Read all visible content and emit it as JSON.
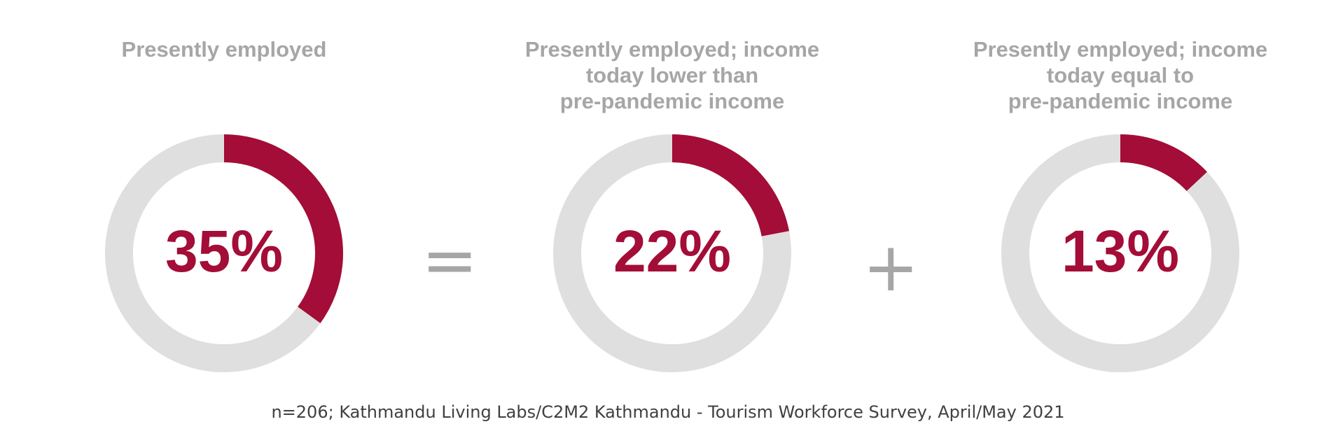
{
  "colors": {
    "accent": "#a30d37",
    "track": "#dfdfdf",
    "title": "#a6a6a6",
    "operator": "#a6a6a6",
    "footnote": "#404040"
  },
  "chart_data": [
    {
      "type": "pie",
      "title": "Presently employed",
      "values": [
        35
      ],
      "label": "35%"
    },
    {
      "type": "pie",
      "title": "Presently employed; income\ntoday lower than\npre-pandemic income",
      "values": [
        22
      ],
      "label": "22%"
    },
    {
      "type": "pie",
      "title": "Presently employed; income\ntoday equal to\npre-pandemic income",
      "values": [
        13
      ],
      "label": "13%"
    }
  ],
  "operators": {
    "equals": "=",
    "plus": "+"
  },
  "footnote": "n=206; Kathmandu Living Labs/C2M2 Kathmandu - Tourism Workforce Survey, April/May 2021"
}
